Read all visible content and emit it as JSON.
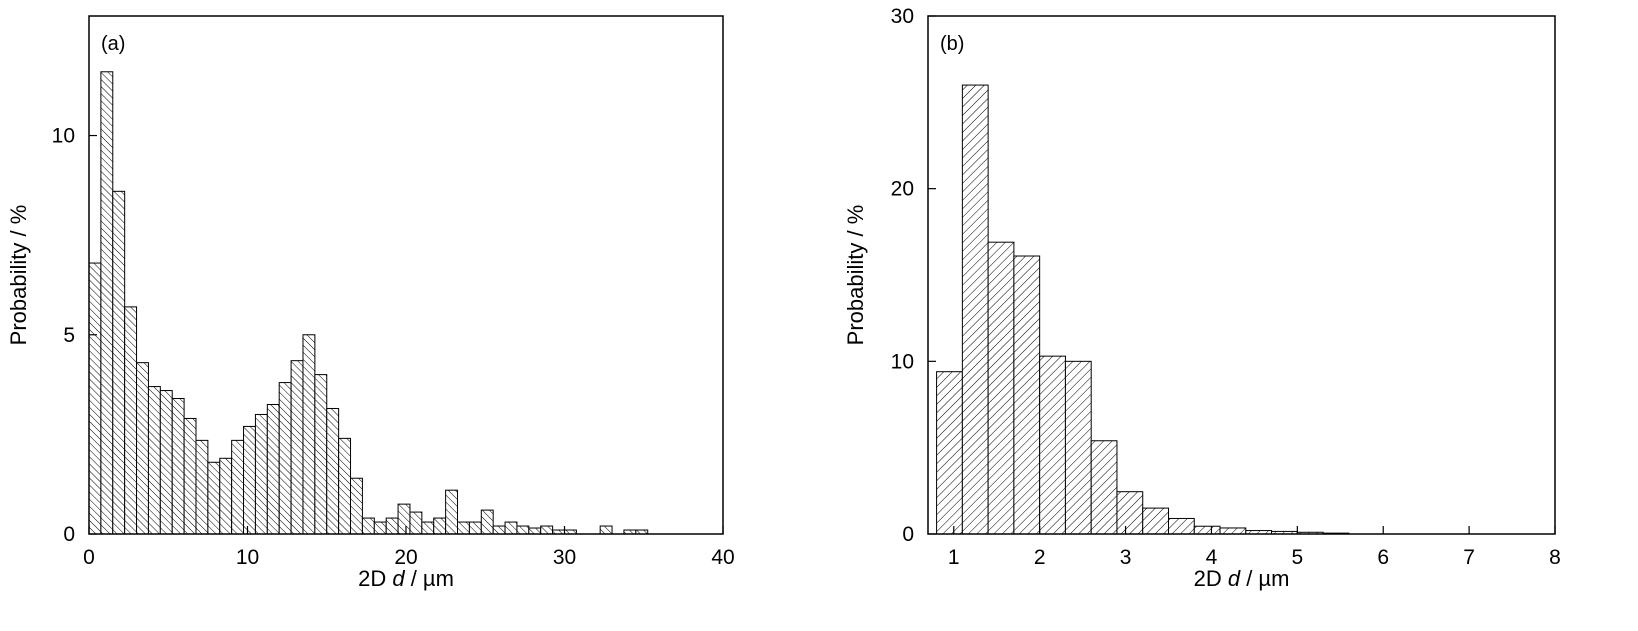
{
  "chart_data": [
    {
      "type": "bar",
      "panel_label": "(a)",
      "xlabel": {
        "prefix": "2D ",
        "var": "d",
        "suffix": " / µm"
      },
      "ylabel": "Probability / %",
      "xlim": [
        0,
        40
      ],
      "ylim": [
        0,
        13
      ],
      "xticks": [
        0,
        10,
        20,
        30,
        40
      ],
      "yticks": [
        0,
        5,
        10
      ],
      "xtick_labels": [
        "0",
        "10",
        "20",
        "30",
        "40"
      ],
      "ytick_labels": [
        "0",
        "5",
        "10"
      ],
      "bin_width": 0.75,
      "x": [
        0.375,
        1.125,
        1.875,
        2.625,
        3.375,
        4.125,
        4.875,
        5.625,
        6.375,
        7.125,
        7.875,
        8.625,
        9.375,
        10.125,
        10.875,
        11.625,
        12.375,
        13.125,
        13.875,
        14.625,
        15.375,
        16.125,
        16.875,
        17.625,
        18.375,
        19.125,
        19.875,
        20.625,
        21.375,
        22.125,
        22.875,
        23.625,
        24.375,
        25.125,
        25.875,
        26.625,
        27.375,
        28.125,
        28.875,
        29.625,
        30.375,
        31.125,
        31.875,
        32.625,
        33.375,
        34.125,
        34.875
      ],
      "values": [
        6.8,
        11.6,
        8.6,
        5.7,
        4.3,
        3.7,
        3.6,
        3.4,
        2.9,
        2.35,
        1.8,
        1.9,
        2.35,
        2.7,
        3.0,
        3.25,
        3.8,
        4.35,
        5.0,
        4.0,
        3.15,
        2.4,
        1.4,
        0.4,
        0.3,
        0.4,
        0.75,
        0.55,
        0.3,
        0.4,
        1.1,
        0.3,
        0.3,
        0.6,
        0.2,
        0.3,
        0.2,
        0.15,
        0.2,
        0.1,
        0.1,
        0,
        0,
        0.2,
        0,
        0.1,
        0.1
      ],
      "hatch": "backslash"
    },
    {
      "type": "bar",
      "panel_label": "(b)",
      "xlabel": {
        "prefix": "2D ",
        "var": "d",
        "suffix": " / µm"
      },
      "ylabel": "Probability / %",
      "xlim": [
        0.7,
        8
      ],
      "ylim": [
        0,
        30
      ],
      "xticks": [
        1,
        2,
        3,
        4,
        5,
        6,
        7,
        8
      ],
      "yticks": [
        0,
        10,
        20,
        30
      ],
      "xtick_labels": [
        "1",
        "2",
        "3",
        "4",
        "5",
        "6",
        "7",
        "8"
      ],
      "ytick_labels": [
        "0",
        "10",
        "20",
        "30"
      ],
      "bin_width": 0.3,
      "x": [
        0.95,
        1.25,
        1.55,
        1.85,
        2.15,
        2.45,
        2.75,
        3.05,
        3.35,
        3.65,
        3.95,
        4.25,
        4.55,
        4.85,
        5.15,
        5.45
      ],
      "values": [
        9.4,
        26.0,
        16.9,
        16.1,
        10.3,
        10.0,
        5.4,
        2.45,
        1.5,
        0.9,
        0.45,
        0.35,
        0.2,
        0.15,
        0.1,
        0.05
      ],
      "hatch": "slash"
    }
  ]
}
